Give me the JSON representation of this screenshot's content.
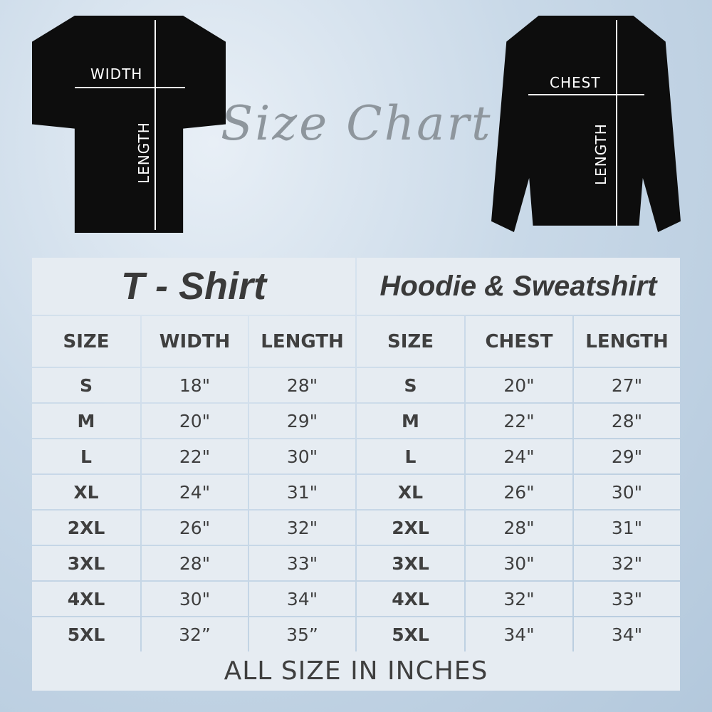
{
  "header": {
    "script_title": "Size Chart"
  },
  "tshirt_image": {
    "width_label": "WIDTH",
    "length_label": "LENGTH"
  },
  "sweatshirt_image": {
    "chest_label": "CHEST",
    "length_label": "LENGTH"
  },
  "tables": [
    {
      "title": "T - Shirt",
      "columns": [
        "SIZE",
        "WIDTH",
        "LENGTH"
      ],
      "rows": [
        [
          "S",
          "18\"",
          "28\""
        ],
        [
          "M",
          "20\"",
          "29\""
        ],
        [
          "L",
          "22\"",
          "30\""
        ],
        [
          "XL",
          "24\"",
          "31\""
        ],
        [
          "2XL",
          "26\"",
          "32\""
        ],
        [
          "3XL",
          "28\"",
          "33\""
        ],
        [
          "4XL",
          "30\"",
          "34\""
        ],
        [
          "5XL",
          "32”",
          "35”"
        ]
      ]
    },
    {
      "title": "Hoodie & Sweatshirt",
      "columns": [
        "SIZE",
        "CHEST",
        "LENGTH"
      ],
      "rows": [
        [
          "S",
          "20\"",
          "27\""
        ],
        [
          "M",
          "22\"",
          "28\""
        ],
        [
          "L",
          "24\"",
          "29\""
        ],
        [
          "XL",
          "26\"",
          "30\""
        ],
        [
          "2XL",
          "28\"",
          "31\""
        ],
        [
          "3XL",
          "30\"",
          "32\""
        ],
        [
          "4XL",
          "32\"",
          "33\""
        ],
        [
          "5XL",
          "34\"",
          "34\""
        ]
      ]
    }
  ],
  "footer": "ALL SIZE IN INCHES",
  "colors": {
    "cell": "#e6ecf2",
    "grid": "#c9d6e3",
    "text": "#3f3f3f"
  }
}
